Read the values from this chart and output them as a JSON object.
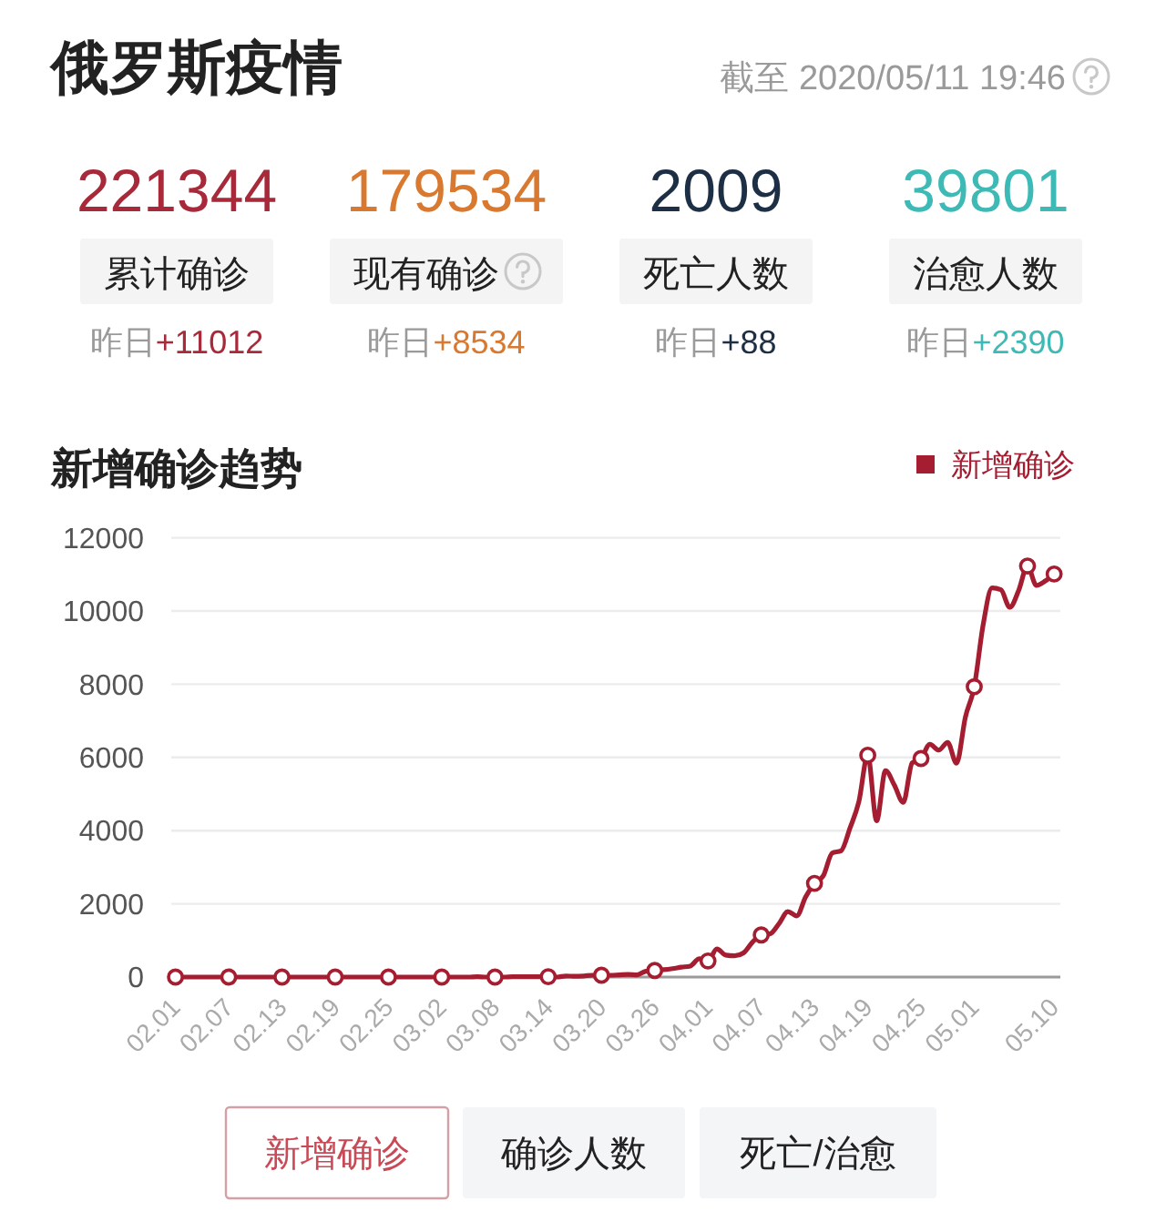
{
  "chart_data": [
    {
      "type": "other",
      "title": "俄罗斯疫情",
      "subtitle": "截至 2020/05/11 19:46",
      "categories": [
        "累计确诊",
        "现有确诊",
        "死亡人数",
        "治愈人数"
      ],
      "colors": [
        "#a82a3a",
        "#d9782f",
        "#1d2f45",
        "#3dbab6"
      ],
      "data_labels": true,
      "series": [
        {
          "values": [
            221344,
            179534,
            2009,
            39801
          ]
        },
        {
          "name": "昨日",
          "values": [
            11012,
            8534,
            88,
            2390
          ],
          "value_labels": [
            "+11012",
            "+8534",
            "+88",
            "+2390"
          ]
        }
      ]
    },
    {
      "type": "line",
      "title": "新增确诊趋势",
      "categories": [
        "02.01",
        null,
        null,
        null,
        null,
        null,
        "02.07",
        null,
        null,
        null,
        null,
        null,
        "02.13",
        null,
        null,
        null,
        null,
        null,
        "02.19",
        null,
        null,
        null,
        null,
        null,
        "02.25",
        null,
        null,
        null,
        null,
        null,
        "03.02",
        null,
        null,
        null,
        null,
        null,
        "03.08",
        null,
        null,
        null,
        null,
        null,
        "03.14",
        null,
        null,
        null,
        null,
        null,
        "03.20",
        null,
        null,
        null,
        null,
        null,
        "03.26",
        null,
        null,
        null,
        null,
        null,
        "04.01",
        null,
        null,
        null,
        null,
        null,
        "04.07",
        null,
        null,
        null,
        null,
        null,
        "04.13",
        null,
        null,
        null,
        null,
        null,
        "04.19",
        null,
        null,
        null,
        null,
        null,
        "04.25",
        null,
        null,
        null,
        null,
        null,
        "05.01",
        null,
        null,
        null,
        null,
        null,
        null,
        null,
        null,
        "05.10"
      ],
      "series": [
        {
          "name": "新增确诊",
          "color": "#a51d31",
          "marker": "none",
          "values": [
            0,
            0,
            0,
            0,
            0,
            0,
            0,
            0,
            0,
            0,
            0,
            0,
            0,
            0,
            0,
            0,
            0,
            0,
            0,
            0,
            0,
            0,
            0,
            0,
            0,
            0,
            0,
            0,
            0,
            0,
            0,
            0,
            0,
            0,
            10,
            0,
            0,
            0,
            10,
            10,
            10,
            10,
            10,
            0,
            30,
            20,
            30,
            50,
            50,
            50,
            60,
            70,
            60,
            160,
            180,
            200,
            230,
            270,
            300,
            500,
            440,
            770,
            600,
            580,
            660,
            950,
            1150,
            1180,
            1460,
            1790,
            1670,
            2190,
            2560,
            2770,
            3390,
            3450,
            4070,
            4790,
            6060,
            4270,
            5640,
            5240,
            4770,
            5850,
            5970,
            6360,
            6200,
            6410,
            5840,
            7100,
            7930,
            9620,
            10630,
            10580,
            10100,
            10560,
            11230,
            10700,
            10820,
            11010
          ]
        },
        {
          "type": "scatter",
          "color": "#a51d31",
          "values": [
            0,
            null,
            null,
            null,
            null,
            null,
            0,
            null,
            null,
            null,
            null,
            null,
            0,
            null,
            null,
            null,
            null,
            null,
            0,
            null,
            null,
            null,
            null,
            null,
            0,
            null,
            null,
            null,
            null,
            null,
            0,
            null,
            null,
            null,
            null,
            null,
            0,
            null,
            null,
            null,
            null,
            null,
            10,
            null,
            null,
            null,
            null,
            null,
            50,
            null,
            null,
            null,
            null,
            null,
            180,
            null,
            null,
            null,
            null,
            null,
            440,
            null,
            null,
            null,
            null,
            null,
            1150,
            null,
            null,
            null,
            null,
            null,
            2560,
            null,
            null,
            null,
            null,
            null,
            6060,
            null,
            null,
            null,
            null,
            null,
            5970,
            null,
            null,
            null,
            null,
            null,
            7930,
            null,
            null,
            null,
            null,
            null,
            11230,
            null,
            null,
            11010
          ]
        }
      ],
      "ylim": [
        0,
        12000
      ],
      "yticks": [
        0,
        2000,
        4000,
        6000,
        8000,
        10000,
        12000
      ],
      "grid": "y",
      "legend": "top right",
      "marker": "circle",
      "annotations": [
        "新增确诊",
        "确诊人数",
        "死亡/治愈"
      ]
    }
  ]
}
